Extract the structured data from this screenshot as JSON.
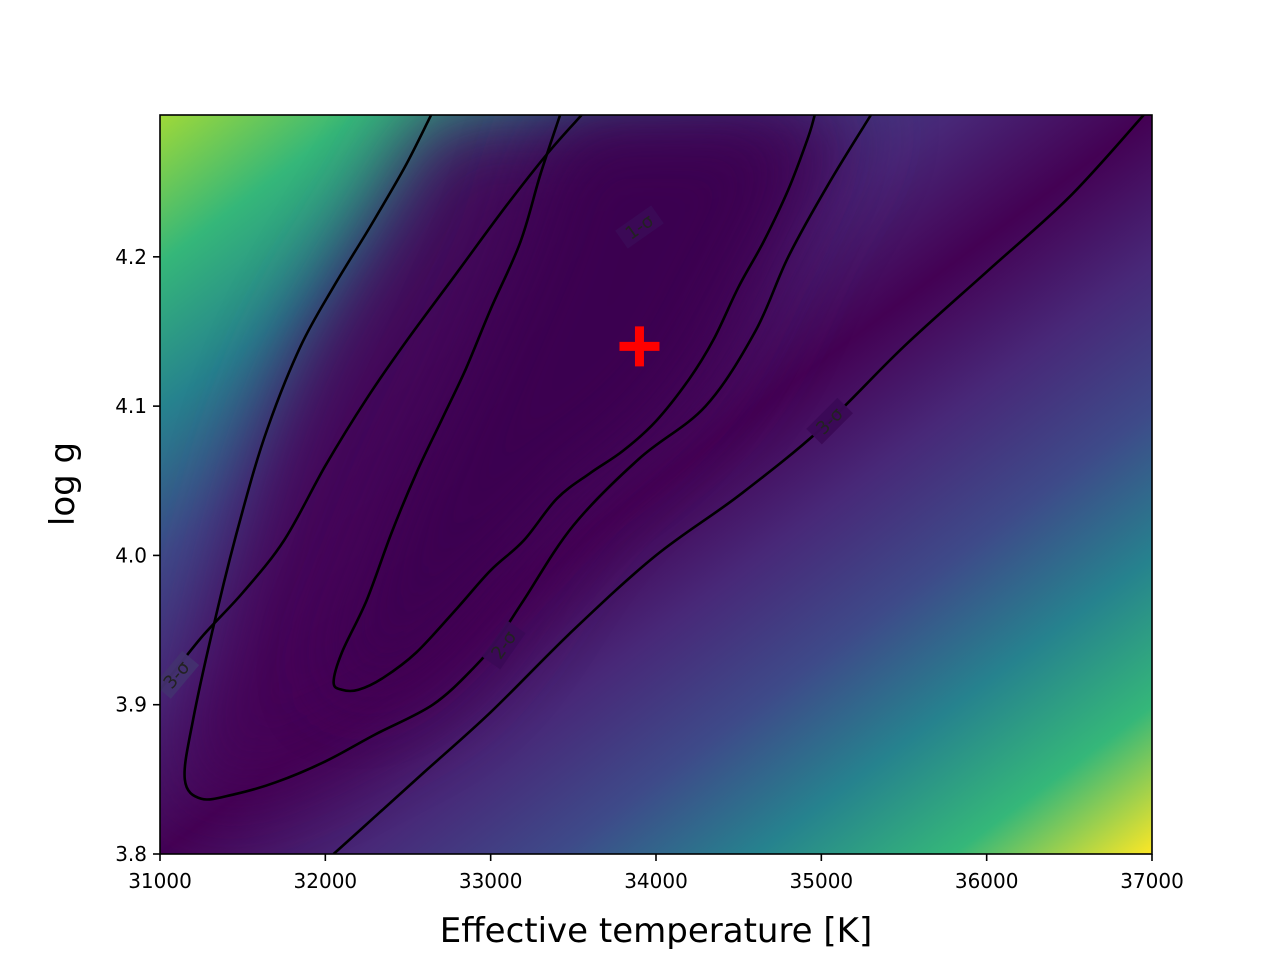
{
  "chart_data": {
    "type": "heatmap",
    "title": "",
    "xlabel": "Effective temperature [K]",
    "ylabel": "log g",
    "xlim": [
      31000,
      37000
    ],
    "ylim": [
      3.8,
      4.295
    ],
    "x_ticks": [
      31000,
      32000,
      33000,
      34000,
      35000,
      36000,
      37000
    ],
    "x_tick_labels": [
      "31000",
      "32000",
      "33000",
      "34000",
      "35000",
      "36000",
      "37000"
    ],
    "y_ticks": [
      3.8,
      3.9,
      4.0,
      4.1,
      4.2
    ],
    "y_tick_labels": [
      "3.8",
      "3.9",
      "4.0",
      "4.1",
      "4.2"
    ],
    "colormap": "viridis",
    "grid": false,
    "best_fit": {
      "x": 33900,
      "y": 4.14,
      "marker": "plus",
      "color": "#ff0000"
    },
    "contours": [
      {
        "name": "1-σ",
        "label": "1-σ",
        "label_at": {
          "x": 33900,
          "y": 4.22,
          "angle": -35
        },
        "points": [
          [
            33420,
            4.295
          ],
          [
            33300,
            4.255
          ],
          [
            33180,
            4.21
          ],
          [
            33000,
            4.165
          ],
          [
            32850,
            4.125
          ],
          [
            32700,
            4.09
          ],
          [
            32550,
            4.055
          ],
          [
            32400,
            4.015
          ],
          [
            32250,
            3.97
          ],
          [
            32100,
            3.935
          ],
          [
            32050,
            3.915
          ],
          [
            32100,
            3.91
          ],
          [
            32200,
            3.91
          ],
          [
            32350,
            3.918
          ],
          [
            32550,
            3.935
          ],
          [
            32800,
            3.965
          ],
          [
            33000,
            3.99
          ],
          [
            33200,
            4.01
          ],
          [
            33400,
            4.038
          ],
          [
            33600,
            4.055
          ],
          [
            33800,
            4.07
          ],
          [
            34000,
            4.09
          ],
          [
            34200,
            4.118
          ],
          [
            34350,
            4.145
          ],
          [
            34500,
            4.18
          ],
          [
            34650,
            4.21
          ],
          [
            34800,
            4.245
          ],
          [
            34920,
            4.28
          ],
          [
            34960,
            4.295
          ]
        ]
      },
      {
        "name": "2-σ",
        "label": "2-σ",
        "label_at": {
          "x": 33080,
          "y": 3.94,
          "angle": -55
        },
        "points": [
          [
            32640,
            4.295
          ],
          [
            32480,
            4.26
          ],
          [
            32270,
            4.22
          ],
          [
            32050,
            4.18
          ],
          [
            31850,
            4.14
          ],
          [
            31650,
            4.085
          ],
          [
            31500,
            4.03
          ],
          [
            31350,
            3.965
          ],
          [
            31200,
            3.89
          ],
          [
            31150,
            3.85
          ],
          [
            31250,
            3.837
          ],
          [
            31450,
            3.84
          ],
          [
            31700,
            3.848
          ],
          [
            32000,
            3.862
          ],
          [
            32300,
            3.88
          ],
          [
            32650,
            3.9
          ],
          [
            32900,
            3.925
          ],
          [
            33050,
            3.945
          ],
          [
            33200,
            3.97
          ],
          [
            33500,
            4.02
          ],
          [
            33900,
            4.065
          ],
          [
            34300,
            4.1
          ],
          [
            34600,
            4.15
          ],
          [
            34800,
            4.2
          ],
          [
            35050,
            4.25
          ],
          [
            35300,
            4.295
          ]
        ]
      },
      {
        "name": "3-σ",
        "label": "3-σ",
        "label_at": {
          "x": 35050,
          "y": 4.09,
          "angle": -45
        },
        "points": [
          [
            31000,
            3.91
          ],
          [
            31250,
            3.945
          ],
          [
            31500,
            3.975
          ],
          [
            31750,
            4.01
          ],
          [
            32000,
            4.06
          ],
          [
            32250,
            4.105
          ],
          [
            32500,
            4.145
          ],
          [
            32800,
            4.19
          ],
          [
            33100,
            4.235
          ],
          [
            33350,
            4.27
          ],
          [
            33550,
            4.295
          ]
        ],
        "points_b": [
          [
            32050,
            3.8
          ],
          [
            32300,
            3.825
          ],
          [
            32600,
            3.855
          ],
          [
            33000,
            3.895
          ],
          [
            33500,
            3.95
          ],
          [
            34000,
            4.0
          ],
          [
            34500,
            4.04
          ],
          [
            35000,
            4.085
          ],
          [
            35500,
            4.14
          ],
          [
            36000,
            4.19
          ],
          [
            36500,
            4.24
          ],
          [
            36950,
            4.295
          ]
        ]
      }
    ]
  }
}
